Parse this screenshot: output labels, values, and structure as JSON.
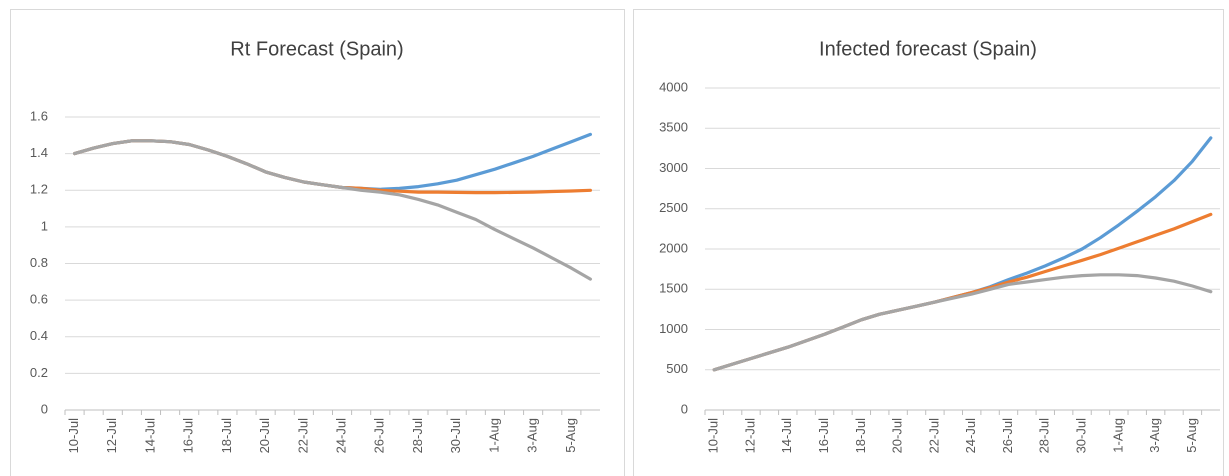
{
  "chart_data": [
    {
      "type": "line",
      "title": "Rt Forecast (Spain)",
      "categories": [
        "10-Jul",
        null,
        "12-Jul",
        null,
        "14-Jul",
        null,
        "16-Jul",
        null,
        "18-Jul",
        null,
        "20-Jul",
        null,
        "22-Jul",
        null,
        "24-Jul",
        null,
        "26-Jul",
        null,
        "28-Jul",
        null,
        "30-Jul",
        null,
        "1-Aug",
        null,
        "3-Aug",
        null,
        "5-Aug",
        null
      ],
      "series": [
        {
          "color": "#5b9bd5",
          "values": [
            1.4,
            1.43,
            1.455,
            1.47,
            1.47,
            1.465,
            1.45,
            1.42,
            1.385,
            1.345,
            1.3,
            1.27,
            1.245,
            1.23,
            1.215,
            1.21,
            1.205,
            1.21,
            1.22,
            1.235,
            1.255,
            1.285,
            1.315,
            1.35,
            1.385,
            1.425,
            1.465,
            1.505
          ]
        },
        {
          "color": "#ed7d31",
          "values": [
            1.4,
            1.43,
            1.455,
            1.47,
            1.47,
            1.465,
            1.45,
            1.42,
            1.385,
            1.345,
            1.3,
            1.27,
            1.245,
            1.23,
            1.215,
            1.21,
            1.2,
            1.195,
            1.19,
            1.19,
            1.188,
            1.187,
            1.187,
            1.188,
            1.19,
            1.193,
            1.196,
            1.2
          ]
        },
        {
          "color": "#a5a5a5",
          "values": [
            1.4,
            1.43,
            1.455,
            1.47,
            1.47,
            1.465,
            1.45,
            1.42,
            1.385,
            1.345,
            1.3,
            1.27,
            1.245,
            1.23,
            1.215,
            1.2,
            1.19,
            1.175,
            1.15,
            1.12,
            1.08,
            1.04,
            0.985,
            0.935,
            0.885,
            0.83,
            0.775,
            0.715
          ]
        }
      ],
      "ylim": [
        0,
        1.6
      ],
      "yticks": [
        0,
        0.2,
        0.4,
        0.6,
        0.8,
        1,
        1.2,
        1.4,
        1.6
      ],
      "grid": true
    },
    {
      "type": "line",
      "title": "Infected forecast (Spain)",
      "categories": [
        "10-Jul",
        null,
        "12-Jul",
        null,
        "14-Jul",
        null,
        "16-Jul",
        null,
        "18-Jul",
        null,
        "20-Jul",
        null,
        "22-Jul",
        null,
        "24-Jul",
        null,
        "26-Jul",
        null,
        "28-Jul",
        null,
        "30-Jul",
        null,
        "1-Aug",
        null,
        "3-Aug",
        null,
        "5-Aug",
        null
      ],
      "series": [
        {
          "color": "#5b9bd5",
          "values": [
            500,
            570,
            640,
            710,
            780,
            860,
            940,
            1030,
            1120,
            1190,
            1240,
            1290,
            1340,
            1400,
            1460,
            1530,
            1620,
            1700,
            1790,
            1890,
            2000,
            2140,
            2300,
            2470,
            2650,
            2850,
            3090,
            3380
          ]
        },
        {
          "color": "#ed7d31",
          "values": [
            500,
            570,
            640,
            710,
            780,
            860,
            940,
            1030,
            1120,
            1190,
            1240,
            1290,
            1340,
            1400,
            1460,
            1520,
            1590,
            1650,
            1720,
            1790,
            1860,
            1930,
            2010,
            2090,
            2170,
            2250,
            2340,
            2430
          ]
        },
        {
          "color": "#a5a5a5",
          "values": [
            500,
            570,
            640,
            710,
            780,
            860,
            940,
            1030,
            1120,
            1190,
            1240,
            1290,
            1340,
            1390,
            1440,
            1500,
            1560,
            1590,
            1620,
            1650,
            1670,
            1680,
            1680,
            1670,
            1640,
            1600,
            1540,
            1470
          ]
        }
      ],
      "ylim": [
        0,
        4000
      ],
      "yticks": [
        0,
        500,
        1000,
        1500,
        2000,
        2500,
        3000,
        3500,
        4000
      ],
      "grid": true
    }
  ]
}
